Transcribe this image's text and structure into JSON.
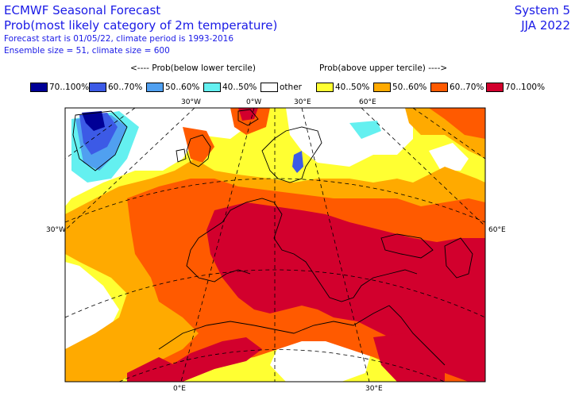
{
  "header": {
    "title": "ECMWF Seasonal Forecast",
    "subtitle": "Prob(most likely category of 2m temperature)",
    "line3": "Forecast start is 01/05/22, climate period is 1993-2016",
    "line4": "Ensemble size = 51, climate size = 600",
    "system": "System 5",
    "season": "JJA 2022"
  },
  "legend": {
    "below_label": "<---- Prob(below lower tercile)",
    "above_label": "Prob(above upper tercile) ---->",
    "items": [
      {
        "label": "70..100%",
        "color": "#000096"
      },
      {
        "label": "60..70%",
        "color": "#3c5ae6"
      },
      {
        "label": "50..60%",
        "color": "#50a0f0"
      },
      {
        "label": "40..50%",
        "color": "#64f0f0"
      },
      {
        "label": "other",
        "color": "#ffffff"
      },
      {
        "label": "40..50%",
        "color": "#ffff32"
      },
      {
        "label": "50..60%",
        "color": "#ffaa00"
      },
      {
        "label": "60..70%",
        "color": "#ff5a00"
      },
      {
        "label": "70..100%",
        "color": "#d2002d"
      }
    ]
  },
  "gridlabels": {
    "top_30w": "30°W",
    "top_0w": "0°W",
    "top_30e": "30°E",
    "top_60e": "60°E",
    "left_30w": "30°W",
    "right_60e": "60°E",
    "bottom_0e": "0°E",
    "bottom_30e": "30°E"
  }
}
